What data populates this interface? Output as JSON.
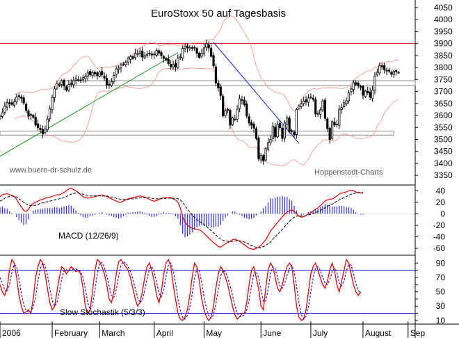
{
  "chart_data": [
    {
      "type": "candlestick",
      "title": "EuroStoxx 50 auf Tagesbasis",
      "watermark_left": "www.buero-dr-schulz.de",
      "watermark_right": "Hoppenstedt-Charts",
      "y_ticks": [
        3350,
        3400,
        3450,
        3500,
        3550,
        3600,
        3650,
        3700,
        3750,
        3800,
        3850,
        3900,
        3950,
        4000,
        4050
      ],
      "ylim": [
        3310,
        4070
      ],
      "x_labels": [
        "2006",
        "February",
        "March",
        "April",
        "May",
        "June",
        "July",
        "August",
        "Sep"
      ],
      "x_label_days": [
        0,
        22,
        42,
        65,
        86,
        110,
        131,
        153,
        172
      ],
      "xlim": [
        0,
        175
      ],
      "resistance_line": 3900,
      "support_zones": [
        [
          3725,
          3745
        ],
        [
          3518,
          3535
        ]
      ],
      "trend_up": {
        "from": [
          0,
          3430
        ],
        "to": [
          75,
          3862
        ]
      },
      "trend_down": {
        "from": [
          90,
          3905
        ],
        "to": [
          126,
          3484
        ]
      },
      "close": [
        3597,
        3611,
        3639,
        3653,
        3649,
        3646,
        3657,
        3677,
        3679,
        3672,
        3652,
        3620,
        3597,
        3605,
        3592,
        3561,
        3549,
        3541,
        3523,
        3543,
        3585,
        3629,
        3675,
        3711,
        3734,
        3730,
        3743,
        3723,
        3705,
        3729,
        3730,
        3745,
        3753,
        3749,
        3746,
        3758,
        3764,
        3780,
        3769,
        3779,
        3773,
        3766,
        3782,
        3769,
        3756,
        3727,
        3729,
        3741,
        3767,
        3794,
        3797,
        3809,
        3814,
        3821,
        3839,
        3846,
        3838,
        3859,
        3858,
        3865,
        3844,
        3849,
        3855,
        3859,
        3852,
        3856,
        3871,
        3860,
        3850,
        3838,
        3831,
        3816,
        3802,
        3812,
        3802,
        3840,
        3844,
        3880,
        3887,
        3882,
        3883,
        3880,
        3883,
        3859,
        3842,
        3860,
        3882,
        3900,
        3882,
        3847,
        3807,
        3735,
        3715,
        3683,
        3599,
        3620,
        3624,
        3560,
        3590,
        3585,
        3626,
        3670,
        3664,
        3644,
        3598,
        3569,
        3559,
        3547,
        3504,
        3420,
        3434,
        3411,
        3463,
        3487,
        3500,
        3555,
        3510,
        3563,
        3549,
        3504,
        3569,
        3590,
        3533,
        3535,
        3520,
        3625,
        3640,
        3649,
        3660,
        3657,
        3673,
        3677,
        3667,
        3606,
        3609,
        3623,
        3660,
        3588,
        3546,
        3499,
        3574,
        3560,
        3564,
        3626,
        3633,
        3653,
        3661,
        3695,
        3711,
        3736,
        3730,
        3723,
        3719,
        3684,
        3702,
        3695,
        3676,
        3706,
        3765,
        3780,
        3807,
        3803,
        3791,
        3787,
        3784,
        3772,
        3784,
        3783,
        3780
      ],
      "macd": [
        30,
        33,
        34,
        35,
        33,
        32,
        30,
        25,
        18,
        12,
        6,
        4,
        8,
        14,
        18,
        20,
        22,
        24,
        25,
        27,
        28,
        29,
        30,
        32,
        33,
        33,
        35,
        37,
        40,
        43,
        44,
        42,
        40,
        37,
        33,
        30,
        28,
        27,
        28,
        29,
        30,
        31,
        32,
        33,
        31,
        30,
        28,
        26,
        24,
        22,
        20,
        20,
        22,
        24,
        26,
        27,
        28,
        29,
        30,
        31,
        30,
        29,
        27,
        25,
        23,
        22,
        23,
        25,
        27,
        28,
        28,
        28,
        28,
        26,
        24,
        20,
        10,
        -5,
        -15,
        -20,
        -23,
        -25,
        -26,
        -27,
        -28,
        -30,
        -34,
        -38,
        -42,
        -46,
        -50,
        -53,
        -57,
        -58,
        -55,
        -52,
        -50,
        -48,
        -45,
        -44,
        -46,
        -48,
        -51,
        -54,
        -57,
        -60,
        -61,
        -62,
        -60,
        -58,
        -55,
        -50,
        -45,
        -38,
        -30,
        -25,
        -20,
        -15,
        -10,
        -5,
        -1,
        3,
        5,
        7,
        4,
        0,
        -4,
        -6,
        -5,
        -3,
        0,
        2,
        5,
        8,
        10,
        14,
        18,
        22,
        24,
        25,
        26,
        28,
        31,
        34,
        36,
        37,
        38,
        40,
        41,
        40,
        38,
        37,
        36,
        36
      ],
      "macd_signal": [
        22,
        24,
        27,
        29,
        30,
        31,
        30,
        29,
        26,
        23,
        20,
        17,
        15,
        14,
        14,
        15,
        16,
        18,
        19,
        20,
        21,
        22,
        23,
        24,
        25,
        26,
        27,
        28,
        30,
        32,
        34,
        35,
        36,
        36,
        35,
        34,
        33,
        32,
        31,
        31,
        31,
        31,
        31,
        31,
        31,
        31,
        30,
        29,
        28,
        27,
        26,
        25,
        25,
        25,
        25,
        26,
        26,
        27,
        27,
        28,
        28,
        28,
        28,
        28,
        27,
        26,
        26,
        26,
        26,
        26,
        27,
        27,
        27,
        27,
        27,
        26,
        24,
        20,
        14,
        8,
        3,
        -2,
        -6,
        -10,
        -13,
        -16,
        -19,
        -22,
        -26,
        -29,
        -33,
        -37,
        -41,
        -44,
        -46,
        -47,
        -48,
        -48,
        -48,
        -47,
        -47,
        -47,
        -48,
        -49,
        -51,
        -53,
        -55,
        -57,
        -58,
        -58,
        -58,
        -57,
        -55,
        -52,
        -49,
        -44,
        -40,
        -36,
        -31,
        -27,
        -22,
        -18,
        -13,
        -9,
        -6,
        -4,
        -4,
        -4,
        -4,
        -3,
        -2,
        -1,
        1,
        2,
        4,
        6,
        8,
        10,
        13,
        15,
        17,
        19,
        22,
        24,
        26,
        28,
        30,
        32,
        34,
        35,
        36,
        37,
        37,
        37
      ],
      "macd_ylim": [
        -72,
        50
      ],
      "macd_ticks": [
        40,
        20,
        0,
        -20,
        -40,
        -60
      ],
      "macd_label": "MACD (12/26/9)",
      "stoch_k": [
        60,
        50,
        45,
        55,
        80,
        95,
        90,
        70,
        45,
        30,
        20,
        22,
        25,
        20,
        40,
        70,
        85,
        95,
        90,
        75,
        55,
        35,
        25,
        30,
        50,
        70,
        85,
        82,
        75,
        80,
        85,
        82,
        78,
        80,
        75,
        55,
        30,
        20,
        25,
        50,
        80,
        95,
        92,
        85,
        75,
        60,
        40,
        35,
        50,
        75,
        92,
        95,
        90,
        85,
        80,
        70,
        55,
        40,
        30,
        35,
        50,
        70,
        85,
        90,
        80,
        65,
        45,
        35,
        50,
        75,
        90,
        95,
        85,
        60,
        40,
        20,
        12,
        10,
        15,
        25,
        45,
        70,
        90,
        85,
        65,
        40,
        25,
        15,
        10,
        15,
        30,
        55,
        75,
        85,
        80,
        70,
        60,
        45,
        30,
        18,
        12,
        15,
        20,
        20,
        35,
        60,
        80,
        85,
        70,
        55,
        30,
        25,
        55,
        80,
        90,
        85,
        70,
        55,
        50,
        60,
        75,
        85,
        90,
        85,
        60,
        30,
        15,
        10,
        12,
        25,
        50,
        75,
        85,
        90,
        80,
        70,
        60,
        55,
        65,
        80,
        90,
        80,
        60,
        50,
        65,
        80,
        95,
        90,
        75,
        60,
        50,
        45,
        50
      ],
      "stoch_d": [
        70,
        62,
        52,
        50,
        60,
        77,
        88,
        85,
        68,
        48,
        32,
        24,
        22,
        22,
        28,
        43,
        65,
        83,
        90,
        87,
        73,
        55,
        38,
        30,
        35,
        50,
        68,
        79,
        81,
        79,
        80,
        82,
        82,
        80,
        78,
        70,
        53,
        35,
        25,
        32,
        52,
        75,
        89,
        91,
        84,
        73,
        58,
        45,
        42,
        53,
        72,
        87,
        92,
        90,
        85,
        78,
        68,
        55,
        42,
        35,
        38,
        52,
        68,
        82,
        85,
        78,
        63,
        48,
        43,
        53,
        72,
        87,
        90,
        80,
        62,
        40,
        24,
        14,
        12,
        17,
        28,
        47,
        68,
        82,
        80,
        63,
        43,
        27,
        17,
        13,
        18,
        33,
        53,
        72,
        80,
        78,
        70,
        58,
        45,
        31,
        20,
        15,
        16,
        18,
        25,
        38,
        58,
        75,
        78,
        70,
        52,
        37,
        37,
        53,
        75,
        85,
        82,
        70,
        58,
        55,
        62,
        73,
        83,
        87,
        78,
        58,
        35,
        18,
        12,
        16,
        29,
        50,
        70,
        83,
        85,
        80,
        70,
        62,
        60,
        67,
        78,
        83,
        77,
        63,
        58,
        65,
        80,
        88,
        87,
        75,
        62,
        52,
        48
      ],
      "stoch_ylim": [
        5,
        101
      ],
      "stoch_ticks": [
        90,
        70,
        50,
        30,
        10,
        80,
        60,
        40,
        20
      ],
      "stoch_levels": [
        80,
        20
      ],
      "stoch_label": "Slow Stochastik (5/3/3)"
    }
  ]
}
